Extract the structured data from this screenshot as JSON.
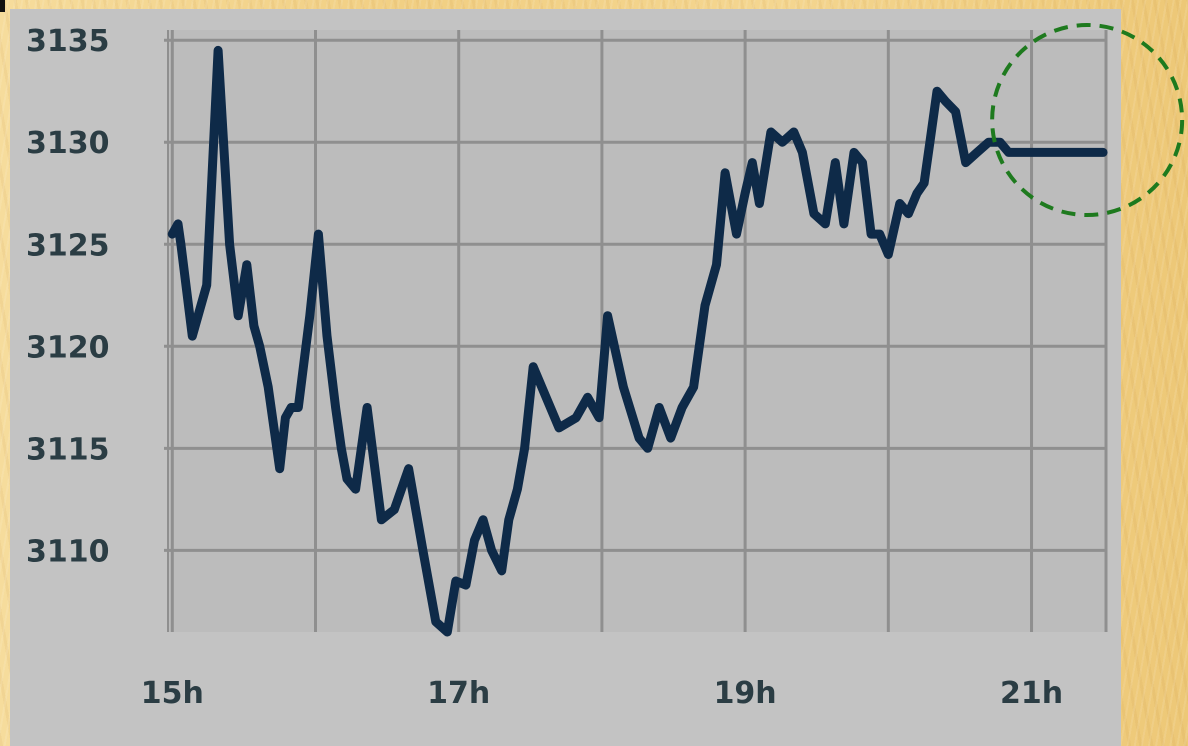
{
  "chart_data": {
    "type": "line",
    "title": "",
    "xlabel": "",
    "ylabel": "",
    "x_tick_labels": [
      "15h",
      "17h",
      "19h",
      "21h"
    ],
    "y_tick_labels": [
      "3135",
      "3130",
      "3125",
      "3120",
      "3115",
      "3110"
    ],
    "ylim": [
      3106,
      3135.5
    ],
    "xlim_hours": [
      14.97,
      21.52
    ],
    "grid": true,
    "colors": {
      "line": "#0e2a48",
      "plot_background": "#bcbcbc",
      "grid": "#8f8f8f",
      "highlight_circle": "#1e7a1e"
    },
    "annotation": {
      "shape": "dashed-circle",
      "location": "top-right",
      "highlights": "final peak"
    },
    "series": [
      {
        "x_hours": [
          15.0,
          15.04,
          15.06,
          15.14,
          15.24,
          15.32,
          15.4,
          15.46,
          15.52,
          15.57,
          15.61,
          15.67,
          15.75,
          15.79,
          15.83,
          15.88,
          15.96,
          16.02,
          16.08,
          16.14,
          16.18,
          16.22,
          16.28,
          16.36,
          16.46,
          16.55,
          16.65,
          16.75,
          16.84,
          16.92,
          16.98,
          17.05,
          17.11,
          17.17,
          17.23,
          17.3,
          17.35,
          17.41,
          17.46,
          17.52,
          17.58,
          17.7,
          17.82,
          17.9,
          17.98,
          18.04,
          18.15,
          18.26,
          18.32,
          18.4,
          18.48,
          18.56,
          18.64,
          18.72,
          18.8,
          18.86,
          18.94,
          19.0,
          19.05,
          19.1,
          19.18,
          19.26,
          19.34,
          19.4,
          19.48,
          19.56,
          19.63,
          19.69,
          19.76,
          19.82,
          19.88,
          19.94,
          20.0,
          20.08,
          20.14,
          20.2,
          20.25,
          20.29,
          20.34,
          20.4,
          20.47,
          20.54,
          20.62,
          20.7,
          20.78,
          20.84,
          20.9,
          20.96,
          21.02,
          21.07,
          21.12,
          21.17,
          21.22,
          21.25,
          21.29,
          21.33,
          21.38,
          21.43,
          21.47,
          21.5
        ],
        "y": [
          3125.5,
          3126,
          3125,
          3120.5,
          3123,
          3134.5,
          3125,
          3121.5,
          3124,
          3121,
          3120,
          3118,
          3114,
          3116.5,
          3117,
          3117,
          3121.5,
          3125.5,
          3120.5,
          3117,
          3115,
          3113.5,
          3113,
          3117,
          3111.5,
          3112,
          3114,
          3110,
          3106.5,
          3106,
          3108.5,
          3108.3,
          3110.5,
          3111.5,
          3110,
          3109,
          3111.5,
          3113,
          3115,
          3119,
          3118,
          3116,
          3116.5,
          3117.5,
          3116.5,
          3121.5,
          3118,
          3115.5,
          3115,
          3117,
          3115.5,
          3117,
          3118,
          3122,
          3124,
          3128.5,
          3125.5,
          3127.5,
          3129,
          3127,
          3130.5,
          3130,
          3130.5,
          3129.5,
          3126.5,
          3126,
          3129,
          3126,
          3129.5,
          3129,
          3125.5,
          3125.5,
          3124.5,
          3127,
          3126.5,
          3127.5,
          3128,
          3130,
          3132.5,
          3132,
          3131.5,
          3129,
          3129.5,
          3130,
          3130,
          3129.5,
          3129.5,
          3129.5,
          3129.5,
          3129.5,
          3129.5,
          3129.5,
          3129.5,
          3129.5,
          3129.5,
          3129.5,
          3129.5,
          3129.5,
          3129.5,
          3129.5
        ]
      }
    ]
  }
}
